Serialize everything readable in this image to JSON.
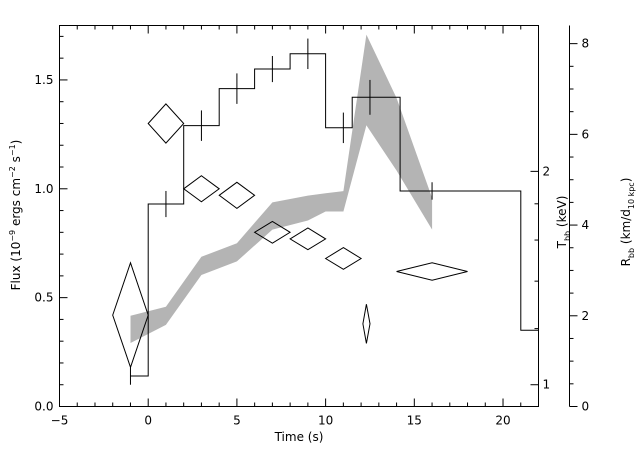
{
  "chart_data": {
    "type": "line",
    "xlabel": "Time (s)",
    "xlim": [
      -5,
      22
    ],
    "x_ticks": [
      -5,
      0,
      5,
      10,
      15,
      20
    ],
    "left_axis": {
      "label_main": "Flux (10",
      "label_exp1": "−9",
      "label_mid": " ergs cm",
      "label_exp2": "−2",
      "label_mid2": " s",
      "label_exp3": "−1",
      "label_end": ")",
      "ylim": [
        0,
        1.75
      ],
      "ticks": [
        0.0,
        0.5,
        1.0,
        1.5
      ],
      "tick_labels": [
        "0.0",
        "0.5",
        "1.0",
        "1.5"
      ]
    },
    "temperature_axis": {
      "label_main": "T",
      "label_sub": "bb",
      "label_end": " (keV)",
      "ticks": [
        1,
        2
      ],
      "tick_labels": [
        "1",
        "2"
      ],
      "flux_equivalent": [
        0.1,
        1.08
      ]
    },
    "radius_axis": {
      "label_main": "R",
      "label_sub1": "bb",
      "label_mid": " (km/d",
      "label_sub2": "10 kpc",
      "label_end": ")",
      "ylim": [
        0,
        8.4
      ],
      "ticks": [
        0,
        2,
        4,
        6,
        8
      ],
      "tick_labels": [
        "0",
        "2",
        "4",
        "6",
        "8"
      ]
    },
    "flux_series": {
      "name": "",
      "steps": [
        {
          "x0": -1,
          "x1": 0,
          "y": 0.14,
          "err": 0.04
        },
        {
          "x0": 0,
          "x1": 2,
          "y": 0.93,
          "err": 0.06
        },
        {
          "x0": 2,
          "x1": 4,
          "y": 1.29,
          "err": 0.07
        },
        {
          "x0": 4,
          "x1": 6,
          "y": 1.46,
          "err": 0.07
        },
        {
          "x0": 6,
          "x1": 8,
          "y": 1.55,
          "err": 0.06
        },
        {
          "x0": 8,
          "x1": 10,
          "y": 1.62,
          "err": 0.07
        },
        {
          "x0": 10,
          "x1": 11.5,
          "y": 1.28,
          "err": 0.07
        },
        {
          "x0": 11.5,
          "x1": 14.2,
          "y": 1.42,
          "err": 0.08
        },
        {
          "x0": 14.2,
          "x1": 21,
          "y": 0.99,
          "err": 0.04
        },
        {
          "x0": 21,
          "x1": 22,
          "y": 0.35,
          "err": 0
        }
      ],
      "error_bar_x": [
        -1,
        1,
        3,
        5,
        7,
        9,
        11,
        12.5,
        16
      ]
    },
    "temperature_points": [
      {
        "x": -1,
        "xerr": 1,
        "y": 0.42,
        "yerr": 0.24
      },
      {
        "x": 1,
        "xerr": 1,
        "y": 1.3,
        "yerr": 0.09
      },
      {
        "x": 3,
        "xerr": 1,
        "y": 1.0,
        "yerr": 0.06
      },
      {
        "x": 5,
        "xerr": 1,
        "y": 0.97,
        "yerr": 0.06
      },
      {
        "x": 7,
        "xerr": 1,
        "y": 0.8,
        "yerr": 0.05
      },
      {
        "x": 9,
        "xerr": 1,
        "y": 0.77,
        "yerr": 0.05
      },
      {
        "x": 11,
        "xerr": 1,
        "y": 0.68,
        "yerr": 0.05
      },
      {
        "x": 12.3,
        "xerr": 0.2,
        "y": 0.38,
        "yerr": 0.09
      },
      {
        "x": 16,
        "xerr": 2,
        "y": 0.62,
        "yerr": 0.04
      }
    ],
    "radius_band": {
      "x": [
        -1,
        1,
        3,
        5,
        7,
        9,
        10,
        11,
        12.3,
        14,
        16
      ],
      "lower": [
        1.4,
        1.8,
        2.9,
        3.2,
        3.9,
        4.1,
        4.3,
        4.3,
        6.2,
        5.2,
        3.9
      ],
      "upper": [
        2.0,
        2.2,
        3.3,
        3.6,
        4.5,
        4.65,
        4.7,
        4.75,
        8.2,
        6.8,
        4.6
      ]
    }
  }
}
